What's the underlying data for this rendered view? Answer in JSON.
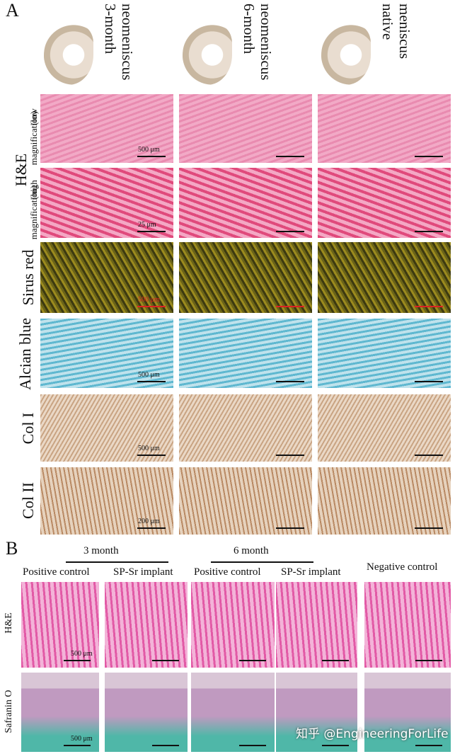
{
  "panel_a": {
    "label": "A",
    "columns": [
      {
        "lines": [
          "3-month",
          "neomeniscus"
        ]
      },
      {
        "lines": [
          "6-month",
          "neomeniscus"
        ]
      },
      {
        "lines": [
          "native",
          "meniscus"
        ]
      }
    ],
    "row_labels": [
      "H&E",
      "(low",
      "magnification)",
      "(high",
      "magnification)",
      "Sirus red",
      "Alcian blue",
      "Col I",
      "Col II"
    ],
    "scale_bars": [
      "500 μm",
      "25 μm",
      "500 μm",
      "500 μm",
      "500 μm",
      "200 μm"
    ]
  },
  "panel_b": {
    "label": "B",
    "groups": [
      "3 month",
      "6 month"
    ],
    "columns": [
      "Positive control",
      "SP-Sr implant",
      "Positive control",
      "SP-Sr implant",
      "Negative control"
    ],
    "row_labels": [
      "H&E",
      "Safranin O"
    ],
    "scale_bars": [
      "500 μm",
      "500 μm"
    ]
  },
  "watermark": "知乎 @EngineeringForLife"
}
